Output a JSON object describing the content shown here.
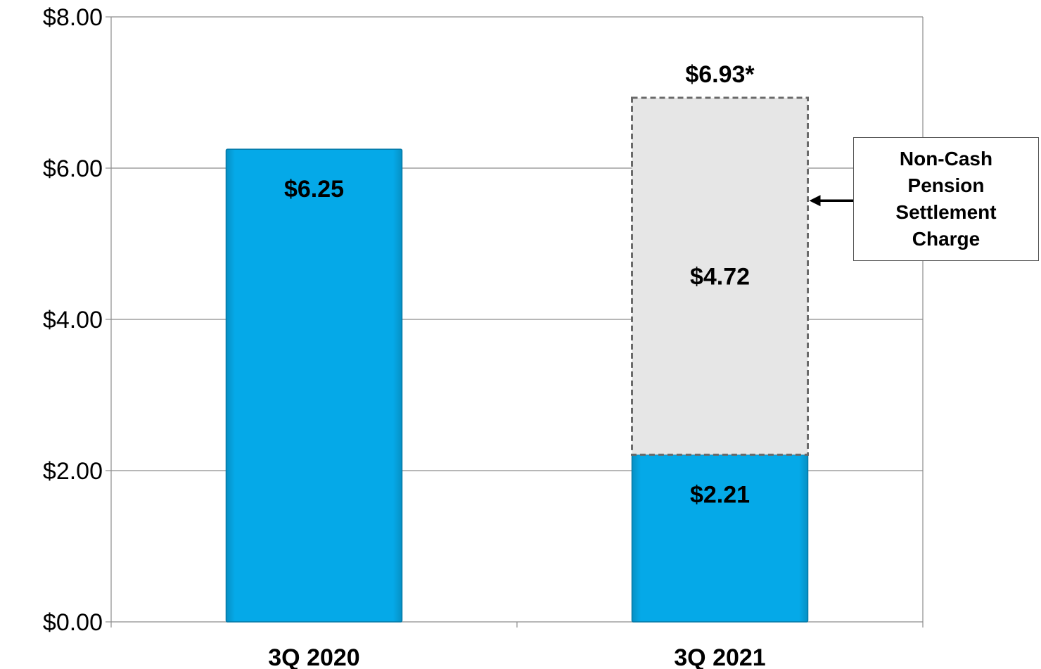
{
  "chart_data": {
    "type": "bar",
    "stacked": true,
    "categories": [
      "3Q 2020",
      "3Q 2021"
    ],
    "series": [
      {
        "values": [
          6.25,
          2.21
        ],
        "color": "#05a9e8",
        "labels": [
          "$6.25",
          "$2.21"
        ]
      },
      {
        "values": [
          0,
          4.72
        ],
        "color": "#e6e6e6",
        "labels": [
          "",
          "$4.72"
        ],
        "style": "dashed"
      }
    ],
    "totals": [
      {
        "category": "3Q 2021",
        "label": "$6.93*"
      }
    ],
    "yticks": [
      0,
      2,
      4,
      6,
      8
    ],
    "ytick_labels": [
      "$0.00",
      "$2.00",
      "$4.00",
      "$6.00",
      "$8.00"
    ],
    "ylim": [
      0,
      8
    ],
    "grid": true,
    "annotation": {
      "text": "Non-Cash Pension Settlement Charge",
      "target_category": "3Q 2021",
      "target_value": 5.57
    }
  }
}
